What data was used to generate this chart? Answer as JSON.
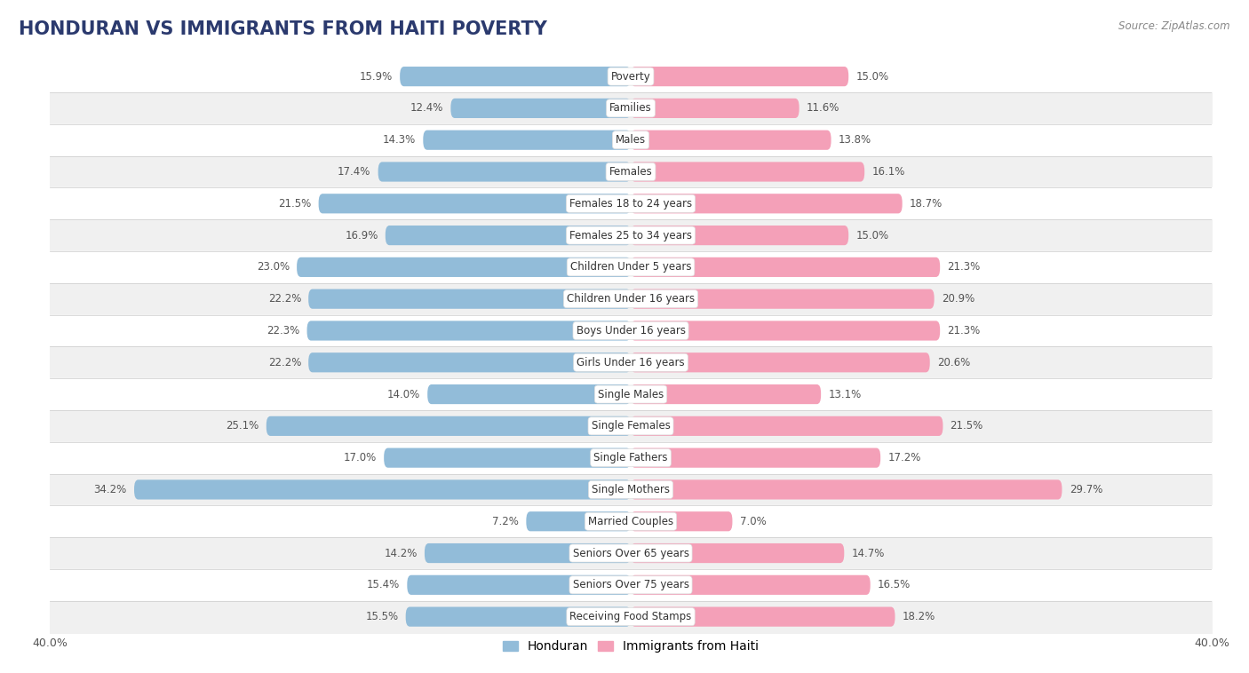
{
  "title": "HONDURAN VS IMMIGRANTS FROM HAITI POVERTY",
  "source": "Source: ZipAtlas.com",
  "categories": [
    "Poverty",
    "Families",
    "Males",
    "Females",
    "Females 18 to 24 years",
    "Females 25 to 34 years",
    "Children Under 5 years",
    "Children Under 16 years",
    "Boys Under 16 years",
    "Girls Under 16 years",
    "Single Males",
    "Single Females",
    "Single Fathers",
    "Single Mothers",
    "Married Couples",
    "Seniors Over 65 years",
    "Seniors Over 75 years",
    "Receiving Food Stamps"
  ],
  "honduran_values": [
    15.9,
    12.4,
    14.3,
    17.4,
    21.5,
    16.9,
    23.0,
    22.2,
    22.3,
    22.2,
    14.0,
    25.1,
    17.0,
    34.2,
    7.2,
    14.2,
    15.4,
    15.5
  ],
  "haiti_values": [
    15.0,
    11.6,
    13.8,
    16.1,
    18.7,
    15.0,
    21.3,
    20.9,
    21.3,
    20.6,
    13.1,
    21.5,
    17.2,
    29.7,
    7.0,
    14.7,
    16.5,
    18.2
  ],
  "honduran_color": "#92bcd9",
  "haiti_color": "#f4a0b8",
  "row_color_odd": "#ffffff",
  "row_color_even": "#f0f0f0",
  "separator_color": "#cccccc",
  "background_color": "#ffffff",
  "xlim": 40.0,
  "bar_height": 0.62,
  "title_fontsize": 15,
  "label_fontsize": 8.5,
  "value_fontsize": 8.5,
  "legend_fontsize": 10
}
